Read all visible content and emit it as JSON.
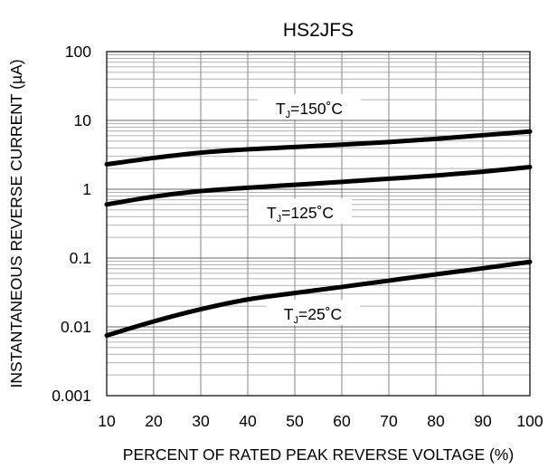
{
  "chart_data": {
    "type": "line",
    "title": "HS2JFS",
    "xlabel": "PERCENT OF RATED PEAK REVERSE VOLTAGE (%)",
    "ylabel": "INSTANTANEOUS REVERSE CURRENT (µA)",
    "xlim": [
      10,
      100
    ],
    "ylim": [
      0.001,
      100
    ],
    "yscale": "log",
    "grid": true,
    "x_ticks": [
      "10",
      "20",
      "30",
      "40",
      "50",
      "60",
      "70",
      "80",
      "90",
      "100"
    ],
    "y_ticks": [
      "0.001",
      "0.01",
      "0.1",
      "1",
      "10",
      "100"
    ],
    "series": [
      {
        "name": "TJ=150°C",
        "label_main": "T",
        "label_sub": "J",
        "label_rest": "=150˚C",
        "x": [
          10,
          20,
          30,
          40,
          50,
          60,
          70,
          80,
          90,
          100
        ],
        "y": [
          2.3,
          2.85,
          3.4,
          3.8,
          4.1,
          4.45,
          4.85,
          5.4,
          6.1,
          6.9
        ]
      },
      {
        "name": "TJ=125°C",
        "label_main": "T",
        "label_sub": "J",
        "label_rest": "=125˚C",
        "x": [
          10,
          20,
          30,
          40,
          50,
          60,
          70,
          80,
          90,
          100
        ],
        "y": [
          0.6,
          0.78,
          0.94,
          1.05,
          1.16,
          1.28,
          1.42,
          1.58,
          1.8,
          2.1
        ]
      },
      {
        "name": "TJ=25°C",
        "label_main": "T",
        "label_sub": "J",
        "label_rest": "=25˚C",
        "x": [
          10,
          20,
          30,
          40,
          50,
          60,
          70,
          80,
          90,
          100
        ],
        "y": [
          0.0075,
          0.012,
          0.018,
          0.025,
          0.031,
          0.038,
          0.047,
          0.058,
          0.071,
          0.088
        ]
      }
    ]
  }
}
